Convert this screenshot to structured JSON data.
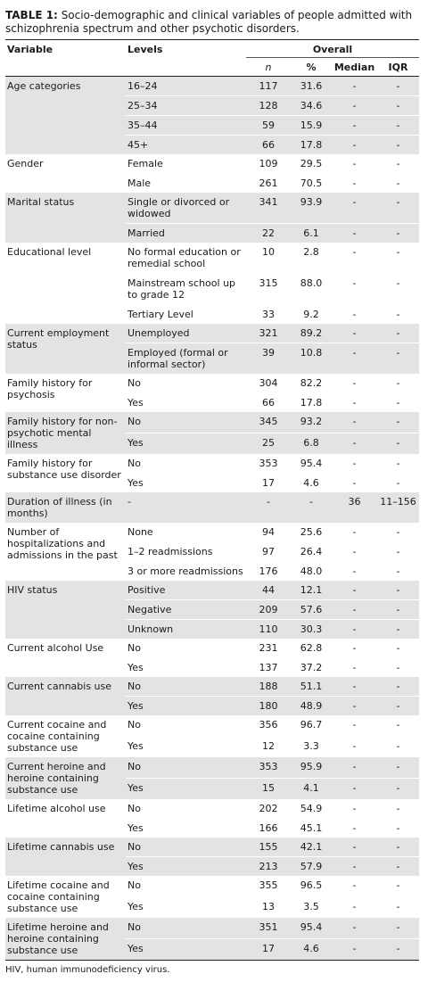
{
  "caption": {
    "label": "TABLE 1:",
    "text": "Socio-demographic and clinical variables of people admitted with schizophrenia spectrum and other psychotic disorders."
  },
  "headers": {
    "variable": "Variable",
    "levels": "Levels",
    "overall": "Overall",
    "n": "n",
    "pct": "%",
    "median": "Median",
    "iqr": "IQR"
  },
  "groups": [
    {
      "variable": "Age categories",
      "shade": true,
      "rows": [
        {
          "level": "16–24",
          "n": "117",
          "pct": "31.6",
          "median": "-",
          "iqr": "-"
        },
        {
          "level": "25–34",
          "n": "128",
          "pct": "34.6",
          "median": "-",
          "iqr": "-"
        },
        {
          "level": "35–44",
          "n": "59",
          "pct": "15.9",
          "median": "-",
          "iqr": "-"
        },
        {
          "level": "45+",
          "n": "66",
          "pct": "17.8",
          "median": "-",
          "iqr": "-"
        }
      ]
    },
    {
      "variable": "Gender",
      "shade": false,
      "rows": [
        {
          "level": "Female",
          "n": "109",
          "pct": "29.5",
          "median": "-",
          "iqr": "-"
        },
        {
          "level": "Male",
          "n": "261",
          "pct": "70.5",
          "median": "-",
          "iqr": "-"
        }
      ]
    },
    {
      "variable": "Marital status",
      "shade": true,
      "rows": [
        {
          "level": "Single or divorced or widowed",
          "n": "341",
          "pct": "93.9",
          "median": "-",
          "iqr": "-"
        },
        {
          "level": "Married",
          "n": "22",
          "pct": "6.1",
          "median": "-",
          "iqr": "-"
        }
      ]
    },
    {
      "variable": "Educational level",
      "shade": false,
      "rows": [
        {
          "level": "No formal education or remedial school",
          "n": "10",
          "pct": "2.8",
          "median": "-",
          "iqr": "-"
        },
        {
          "level": "Mainstream school up to grade 12",
          "n": "315",
          "pct": "88.0",
          "median": "-",
          "iqr": "-"
        },
        {
          "level": "Tertiary Level",
          "n": "33",
          "pct": "9.2",
          "median": "-",
          "iqr": "-"
        }
      ]
    },
    {
      "variable": "Current employment status",
      "shade": true,
      "rows": [
        {
          "level": "Unemployed",
          "n": "321",
          "pct": "89.2",
          "median": "-",
          "iqr": "-"
        },
        {
          "level": "Employed (formal or informal sector)",
          "n": "39",
          "pct": "10.8",
          "median": "-",
          "iqr": "-"
        }
      ]
    },
    {
      "variable": "Family history for psychosis",
      "shade": false,
      "rows": [
        {
          "level": "No",
          "n": "304",
          "pct": "82.2",
          "median": "-",
          "iqr": "-"
        },
        {
          "level": "Yes",
          "n": "66",
          "pct": "17.8",
          "median": "-",
          "iqr": "-"
        }
      ]
    },
    {
      "variable": "Family history for non-psychotic mental illness",
      "shade": true,
      "rows": [
        {
          "level": "No",
          "n": "345",
          "pct": "93.2",
          "median": "-",
          "iqr": "-"
        },
        {
          "level": "Yes",
          "n": "25",
          "pct": "6.8",
          "median": "-",
          "iqr": "-"
        }
      ]
    },
    {
      "variable": "Family history for substance use disorder",
      "shade": false,
      "rows": [
        {
          "level": "No",
          "n": "353",
          "pct": "95.4",
          "median": "-",
          "iqr": "-"
        },
        {
          "level": "Yes",
          "n": "17",
          "pct": "4.6",
          "median": "-",
          "iqr": "-"
        }
      ]
    },
    {
      "variable": "Duration of illness (in months)",
      "shade": true,
      "rows": [
        {
          "level": "-",
          "n": "-",
          "pct": "-",
          "median": "36",
          "iqr": "11–156"
        }
      ]
    },
    {
      "variable": "Number of hospitalizations and admissions in the past",
      "shade": false,
      "rows": [
        {
          "level": "None",
          "n": "94",
          "pct": "25.6",
          "median": "-",
          "iqr": "-"
        },
        {
          "level": "1–2 readmissions",
          "n": "97",
          "pct": "26.4",
          "median": "-",
          "iqr": "-"
        },
        {
          "level": "3 or more readmissions",
          "n": "176",
          "pct": "48.0",
          "median": "-",
          "iqr": "-"
        }
      ]
    },
    {
      "variable": "HIV status",
      "shade": true,
      "rows": [
        {
          "level": "Positive",
          "n": "44",
          "pct": "12.1",
          "median": "-",
          "iqr": "-"
        },
        {
          "level": "Negative",
          "n": "209",
          "pct": "57.6",
          "median": "-",
          "iqr": "-"
        },
        {
          "level": "Unknown",
          "n": "110",
          "pct": "30.3",
          "median": "-",
          "iqr": "-"
        }
      ]
    },
    {
      "variable": "Current alcohol Use",
      "shade": false,
      "rows": [
        {
          "level": "No",
          "n": "231",
          "pct": "62.8",
          "median": "-",
          "iqr": "-"
        },
        {
          "level": "Yes",
          "n": "137",
          "pct": "37.2",
          "median": "-",
          "iqr": "-"
        }
      ]
    },
    {
      "variable": "Current cannabis use",
      "shade": true,
      "rows": [
        {
          "level": "No",
          "n": "188",
          "pct": "51.1",
          "median": "-",
          "iqr": "-"
        },
        {
          "level": "Yes",
          "n": "180",
          "pct": "48.9",
          "median": "-",
          "iqr": "-"
        }
      ]
    },
    {
      "variable": "Current cocaine and cocaine containing substance use",
      "shade": false,
      "rows": [
        {
          "level": "No",
          "n": "356",
          "pct": "96.7",
          "median": "-",
          "iqr": "-"
        },
        {
          "level": "Yes",
          "n": "12",
          "pct": "3.3",
          "median": "-",
          "iqr": "-"
        }
      ]
    },
    {
      "variable": "Current heroine and heroine containing substance use",
      "shade": true,
      "rows": [
        {
          "level": "No",
          "n": "353",
          "pct": "95.9",
          "median": "-",
          "iqr": "-"
        },
        {
          "level": "Yes",
          "n": "15",
          "pct": "4.1",
          "median": "-",
          "iqr": "-"
        }
      ]
    },
    {
      "variable": "Lifetime alcohol use",
      "shade": false,
      "rows": [
        {
          "level": "No",
          "n": "202",
          "pct": "54.9",
          "median": "-",
          "iqr": "-"
        },
        {
          "level": "Yes",
          "n": "166",
          "pct": "45.1",
          "median": "-",
          "iqr": "-"
        }
      ]
    },
    {
      "variable": "Lifetime cannabis use",
      "shade": true,
      "rows": [
        {
          "level": "No",
          "n": "155",
          "pct": "42.1",
          "median": "-",
          "iqr": "-"
        },
        {
          "level": "Yes",
          "n": "213",
          "pct": "57.9",
          "median": "-",
          "iqr": "-"
        }
      ]
    },
    {
      "variable": "Lifetime cocaine and cocaine containing substance use",
      "shade": false,
      "rows": [
        {
          "level": "No",
          "n": "355",
          "pct": "96.5",
          "median": "-",
          "iqr": "-"
        },
        {
          "level": "Yes",
          "n": "13",
          "pct": "3.5",
          "median": "-",
          "iqr": "-"
        }
      ]
    },
    {
      "variable": "Lifetime heroine and heroine containing substance use",
      "shade": true,
      "rows": [
        {
          "level": "No",
          "n": "351",
          "pct": "95.4",
          "median": "-",
          "iqr": "-"
        },
        {
          "level": "Yes",
          "n": "17",
          "pct": "4.6",
          "median": "-",
          "iqr": "-"
        }
      ]
    }
  ],
  "footnote": "HIV, human immunodeficiency virus."
}
